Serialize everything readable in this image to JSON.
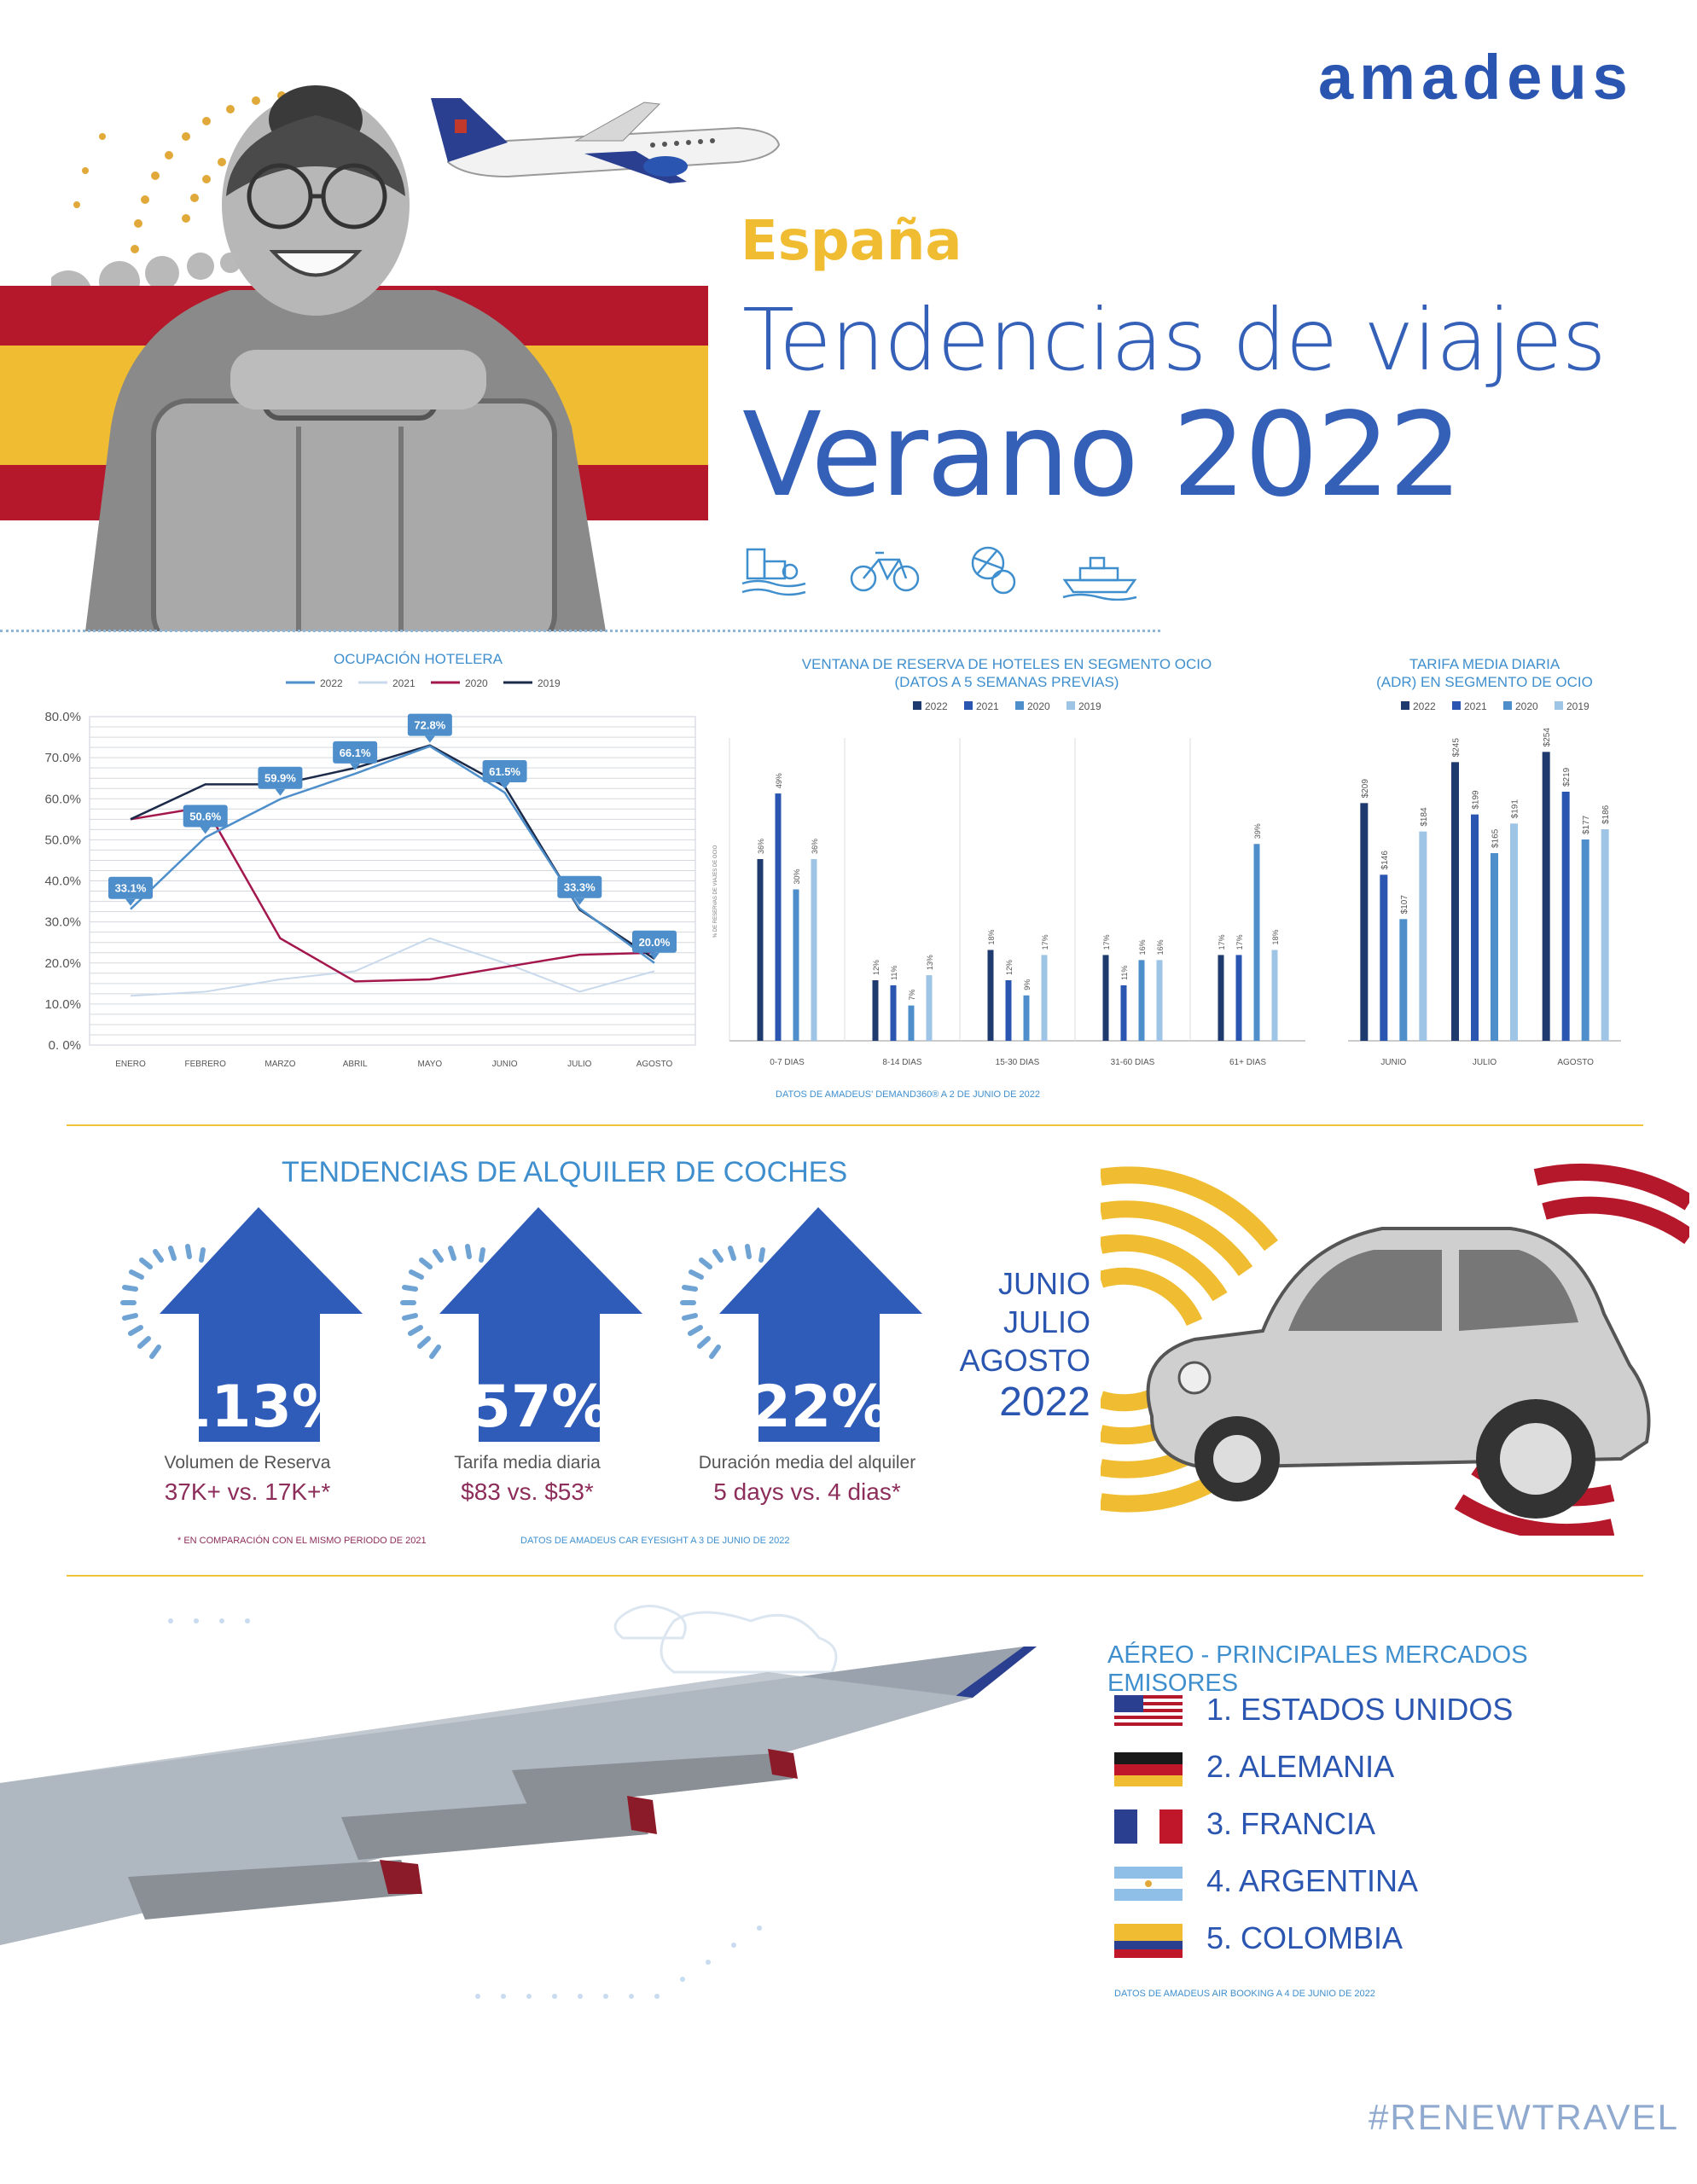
{
  "brand": {
    "logo": "amadeus",
    "color": "#2a55b0"
  },
  "header": {
    "country": "España",
    "title_line1": "Tendencias de viajes",
    "title_line2": "Verano 2022",
    "icons": [
      "beach-city-icon",
      "bicycle-icon",
      "sports-balls-icon",
      "ferry-icon"
    ]
  },
  "colors": {
    "red": "#b5182a",
    "yellow": "#f0bd32",
    "blue_dark": "#1f3a6e",
    "blue": "#2a55b0",
    "blue_mid": "#4e8fcb",
    "blue_light": "#9ec4e6",
    "accent_text": "#3f8fce",
    "maroon": "#8c2d5a"
  },
  "chart_data": [
    {
      "type": "line",
      "title": "OCUPACIÓN HOTELERA",
      "categories": [
        "ENERO",
        "FEBRERO",
        "MARZO",
        "ABRIL",
        "MAYO",
        "JUNIO",
        "JULIO",
        "AGOSTO"
      ],
      "ytick_labels": [
        "80.0%",
        "70.0%",
        "60.0%",
        "50.0%",
        "40.0%",
        "30.0%",
        "20.0%",
        "10.0%",
        "0. 0%"
      ],
      "ylim": [
        0,
        80
      ],
      "series": [
        {
          "name": "2022",
          "color": "#4e8fcb",
          "values": [
            33.1,
            50.6,
            59.9,
            66.1,
            72.8,
            61.5,
            33.3,
            20.0
          ]
        },
        {
          "name": "2021",
          "color": "#c9d9ec",
          "values": [
            12,
            13,
            16,
            18,
            26,
            20,
            13,
            18
          ]
        },
        {
          "name": "2020",
          "color": "#a3174d",
          "values": [
            55,
            58,
            26,
            15.5,
            16,
            19,
            22,
            22.5
          ]
        },
        {
          "name": "2019",
          "color": "#1c2a4a",
          "values": [
            55,
            63.5,
            63.5,
            67.5,
            73,
            63,
            33,
            21
          ]
        }
      ],
      "data_labels": [
        "33.1%",
        "50.6%",
        "59.9%",
        "66.1%",
        "72.8%",
        "61.5%",
        "33.3%",
        "20.0%"
      ],
      "grid": true,
      "legend": "top"
    },
    {
      "type": "bar",
      "title_line1": "VENTANA DE RESERVA DE HOTELES EN SEGMENTO OCIO",
      "title_line2": "(DATOS A 5 SEMANAS PREVIAS)",
      "ylabel": "% DE RESERVAS DE VIAJES DE OCIO",
      "categories": [
        "0-7 DIAS",
        "8-14 DIAS",
        "15-30 DIAS",
        "31-60 DIAS",
        "61+ DIAS"
      ],
      "series": [
        {
          "name": "2022",
          "color": "#1f3a6e",
          "values": [
            36,
            12,
            18,
            17,
            17
          ],
          "labels": [
            "36%",
            "12%",
            "18%",
            "17%",
            "17%"
          ]
        },
        {
          "name": "2021",
          "color": "#2a55b0",
          "values": [
            49,
            11,
            12,
            11,
            17
          ],
          "labels": [
            "49%",
            "11%",
            "12%",
            "11%",
            "17%"
          ]
        },
        {
          "name": "2020",
          "color": "#4e8fcb",
          "values": [
            30,
            7,
            9,
            16,
            39
          ],
          "labels": [
            "30%",
            "7%",
            "9%",
            "16%",
            "39%"
          ]
        },
        {
          "name": "2019",
          "color": "#9ec4e6",
          "values": [
            36,
            13,
            17,
            16,
            18
          ],
          "labels": [
            "36%",
            "13%",
            "17%",
            "16%",
            "18%"
          ]
        }
      ],
      "source": "DATOS DE AMADEUS' DEMAND360® A 2 DE JUNIO DE 2022",
      "legend": "top"
    },
    {
      "type": "bar",
      "title_line1": "TARIFA MEDIA DIARIA",
      "title_line2": "(ADR) EN SEGMENTO DE OCIO",
      "categories": [
        "JUNIO",
        "JULIO",
        "AGOSTO"
      ],
      "series": [
        {
          "name": "2022",
          "color": "#1f3a6e",
          "values": [
            209,
            245,
            254
          ],
          "labels": [
            "$209",
            "$245",
            "$254"
          ]
        },
        {
          "name": "2021",
          "color": "#2a55b0",
          "values": [
            146,
            199,
            219
          ],
          "labels": [
            "$146",
            "$199",
            "$219"
          ]
        },
        {
          "name": "2020",
          "color": "#4e8fcb",
          "values": [
            107,
            165,
            177
          ],
          "labels": [
            "$107",
            "$165",
            "$177"
          ]
        },
        {
          "name": "2019",
          "color": "#9ec4e6",
          "values": [
            184,
            191,
            186
          ],
          "labels": [
            "$184",
            "$191",
            "$186"
          ]
        }
      ],
      "legend": "top"
    }
  ],
  "car_rental": {
    "title": "TENDENCIAS DE ALQUILER DE COCHES",
    "metrics": [
      {
        "pct": "113%",
        "label": "Volumen de Reserva",
        "value": "37K+ vs. 17K+*"
      },
      {
        "pct": "57%",
        "label": "Tarifa media diaria",
        "value": "$83 vs. $53*"
      },
      {
        "pct": "22%",
        "label": "Duración media del alquiler",
        "value": "5 days vs. 4 dias*"
      }
    ],
    "footnote": "* EN COMPARACIÓN CON EL MISMO PERIODO DE 2021",
    "source": "DATOS DE AMADEUS CAR EYESIGHT A 3 DE JUNIO DE 2022",
    "period": [
      "JUNIO",
      "JULIO",
      "AGOSTO",
      "2022"
    ]
  },
  "air": {
    "title": "AÉREO - PRINCIPALES MERCADOS EMISORES",
    "markets": [
      {
        "label": "1. ESTADOS UNIDOS",
        "flag": "usa-flag-icon"
      },
      {
        "label": "2. ALEMANIA",
        "flag": "germany-flag-icon"
      },
      {
        "label": "3. FRANCIA",
        "flag": "france-flag-icon"
      },
      {
        "label": "4. ARGENTINA",
        "flag": "argentina-flag-icon"
      },
      {
        "label": "5. COLOMBIA",
        "flag": "colombia-flag-icon"
      }
    ],
    "source": "DATOS DE AMADEUS AIR BOOKING A 4 DE JUNIO DE 2022"
  },
  "footer": {
    "hashtag": "#RENEWTRAVEL"
  }
}
